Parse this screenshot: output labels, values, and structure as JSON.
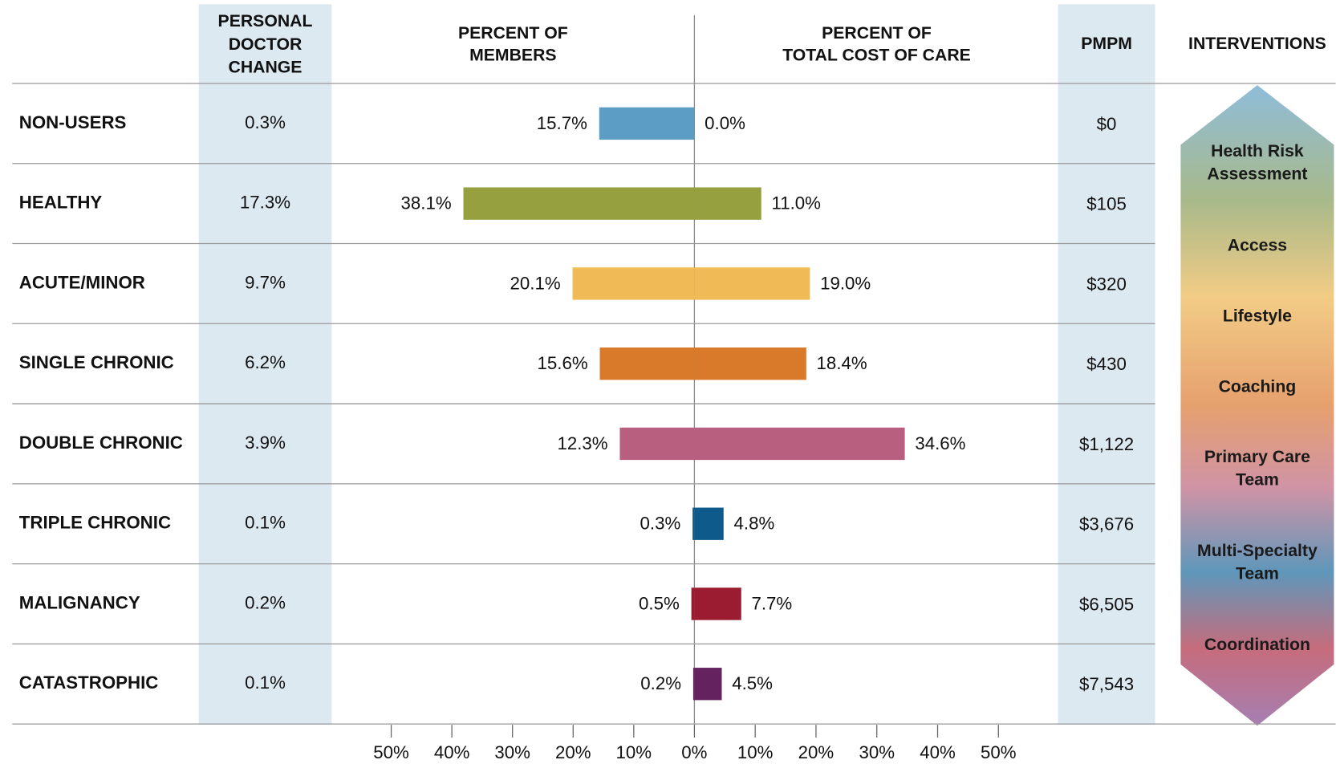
{
  "chart_data": {
    "type": "butterfly",
    "headers": {
      "doctor_change": [
        "PERSONAL",
        "DOCTOR",
        "CHANGE"
      ],
      "members": [
        "PERCENT OF",
        "MEMBERS"
      ],
      "cost": [
        "PERCENT OF",
        "TOTAL COST OF CARE"
      ],
      "pmpm": [
        "PMPM"
      ],
      "interventions": [
        "INTERVENTIONS"
      ]
    },
    "categories": [
      "NON-USERS",
      "HEALTHY",
      "ACUTE/MINOR",
      "SINGLE CHRONIC",
      "DOUBLE CHRONIC",
      "TRIPLE CHRONIC",
      "MALIGNANCY",
      "CATASTROPHIC"
    ],
    "colors": [
      "#5b9dc4",
      "#96a03f",
      "#f0bb56",
      "#d97a2b",
      "#b85f80",
      "#0e5a8a",
      "#9b1c31",
      "#64235f"
    ],
    "doctor_change": {
      "values": [
        0.3,
        17.3,
        9.7,
        6.2,
        3.9,
        0.1,
        0.2,
        0.1
      ],
      "value_labels": [
        "0.3%",
        "17.3%",
        "9.7%",
        "6.2%",
        "3.9%",
        "0.1%",
        "0.2%",
        "0.1%"
      ]
    },
    "series": [
      {
        "axis": "x",
        "values": [
          15.7,
          38.1,
          20.1,
          15.6,
          12.3,
          0.3,
          0.5,
          0.2
        ],
        "value_labels": [
          "15.7%",
          "38.1%",
          "20.1%",
          "15.6%",
          "12.3%",
          "0.3%",
          "0.5%",
          "0.2%"
        ]
      },
      {
        "axis": "x2",
        "values": [
          0.0,
          11.0,
          19.0,
          18.4,
          34.6,
          4.8,
          7.7,
          4.5
        ],
        "value_labels": [
          "0.0%",
          "11.0%",
          "19.0%",
          "18.4%",
          "34.6%",
          "4.8%",
          "7.7%",
          "4.5%"
        ]
      }
    ],
    "pmpm": {
      "values": [
        0,
        105,
        320,
        430,
        1122,
        3676,
        6505,
        7543
      ],
      "value_labels": [
        "$0",
        "$105",
        "$320",
        "$430",
        "$1,122",
        "$3,676",
        "$6,505",
        "$7,543"
      ]
    },
    "xlim": [
      50,
      0
    ],
    "xticks": [
      {
        "value": 50,
        "label": "50%"
      },
      {
        "value": 40,
        "label": "40%"
      },
      {
        "value": 30,
        "label": "30%"
      },
      {
        "value": 20,
        "label": "20%"
      },
      {
        "value": 10,
        "label": "10%"
      },
      {
        "value": 0,
        "label": "0%"
      }
    ],
    "x2lim": [
      0,
      50
    ],
    "x2ticks": [
      {
        "value": 10,
        "label": "10%"
      },
      {
        "value": 20,
        "label": "20%"
      },
      {
        "value": 30,
        "label": "30%"
      },
      {
        "value": 40,
        "label": "40%"
      },
      {
        "value": 50,
        "label": "50%"
      }
    ],
    "interventions": [
      [
        "Health Risk",
        "Assessment"
      ],
      [
        "Access"
      ],
      [
        "Lifestyle"
      ],
      [
        "Coaching"
      ],
      [
        "Primary Care",
        "Team"
      ],
      [
        "Multi-Specialty",
        "Team"
      ],
      [
        "Coordination"
      ]
    ]
  }
}
